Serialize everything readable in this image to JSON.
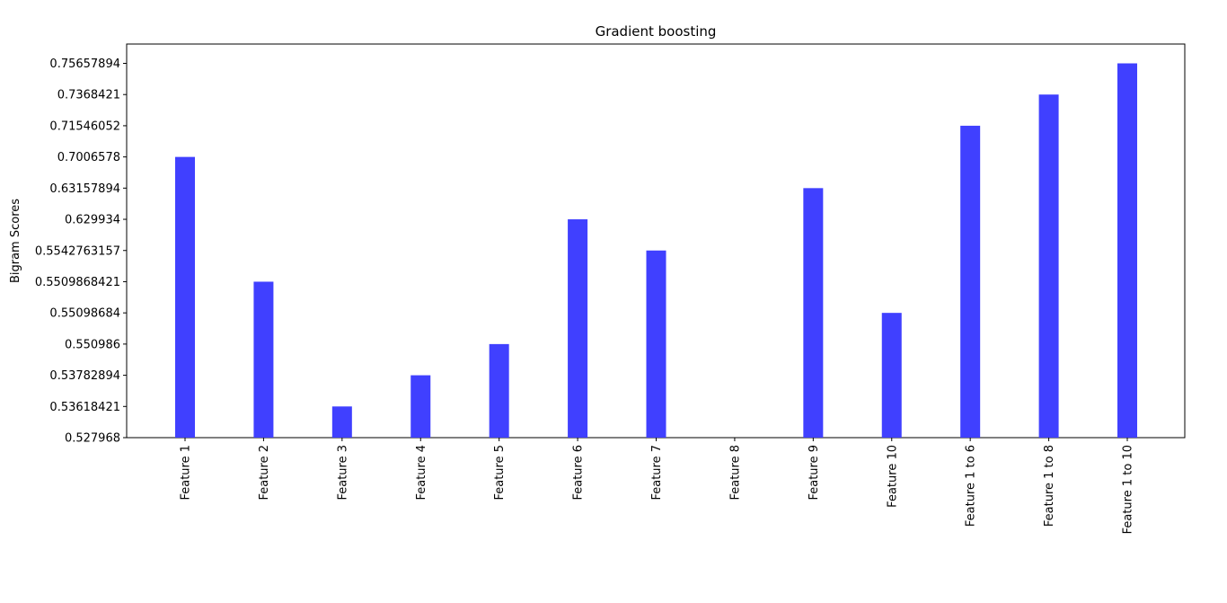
{
  "chart_data": {
    "type": "bar",
    "title": "Gradient boosting",
    "xlabel": "",
    "ylabel": "Bigram Scores",
    "bar_color": "#4040ff",
    "categories": [
      "Feature 1",
      "Feature 2",
      "Feature 3",
      "Feature 4",
      "Feature 5",
      "Feature 6",
      "Feature 7",
      "Feature 8",
      "Feature 9",
      "Feature 10",
      "Feature 1 to 6",
      "Feature 1 to 8",
      "Feature 1 to 10"
    ],
    "y_scale": "categorical",
    "y_tick_labels": [
      "0.527968",
      "0.53618421",
      "0.53782894",
      "0.550986",
      "0.55098684",
      "0.5509868421",
      "0.5542763157",
      "0.629934",
      "0.63157894",
      "0.7006578",
      "0.71546052",
      "0.7368421",
      "0.75657894"
    ],
    "values": [
      "0.7006578",
      "0.5509868421",
      "0.53618421",
      "0.53782894",
      "0.550986",
      "0.629934",
      "0.5542763157",
      "0.527968",
      "0.63157894",
      "0.55098684",
      "0.71546052",
      "0.7368421",
      "0.75657894"
    ],
    "grid": false,
    "legend": "none"
  }
}
